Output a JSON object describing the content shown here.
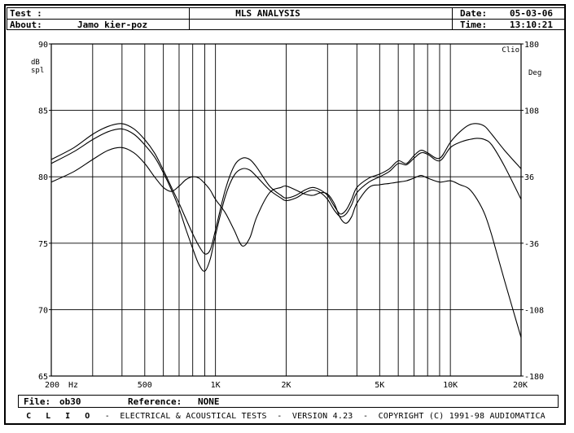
{
  "header": {
    "test_label": "Test :",
    "about_label": "About:",
    "about_value": "Jamo kier-poz",
    "title": "MLS ANALYSIS",
    "date_label": "Date:",
    "date_value": "05-03-06",
    "time_label": "Time:",
    "time_value": "13:10:21"
  },
  "footer": {
    "file_label": "File:",
    "file_value": "ob30",
    "reference_label": "Reference:",
    "reference_value": "NONE"
  },
  "credits": {
    "brand": "C L I O",
    "text": "-  ELECTRICAL & ACOUSTICAL TESTS  -  VERSION 4.23  -  COPYRIGHT (C) 1991-98 AUDIOMATICA"
  },
  "chart_data": {
    "type": "line",
    "corner_label": "Clio",
    "ylabel_left": "dB\nspl",
    "ylabel_right": "Deg",
    "x_unit": "Hz",
    "x_scale": "log",
    "xlim": [
      200,
      20000
    ],
    "ylim": [
      65,
      90
    ],
    "ylim_right": [
      -180,
      180
    ],
    "x_ticks": [
      {
        "value": 200,
        "label": "200"
      },
      {
        "value": 500,
        "label": "500"
      },
      {
        "value": 1000,
        "label": "1K"
      },
      {
        "value": 2000,
        "label": "2K"
      },
      {
        "value": 5000,
        "label": "5K"
      },
      {
        "value": 10000,
        "label": "10K"
      },
      {
        "value": 20000,
        "label": "20K"
      }
    ],
    "y_ticks": [
      65,
      70,
      75,
      80,
      85,
      90
    ],
    "y_ticks_right": [
      -180,
      -108,
      -36,
      36,
      108,
      180
    ],
    "grid": true,
    "series": [
      {
        "x": [
          200,
          250,
          300,
          350,
          400,
          450,
          500,
          550,
          600,
          650,
          700,
          750,
          800,
          850,
          900,
          950,
          1000,
          1100,
          1200,
          1300,
          1400,
          1500,
          1700,
          1900,
          2000,
          2200,
          2400,
          2600,
          2800,
          3000,
          3200,
          3400,
          3600,
          3800,
          4000,
          4500,
          5000,
          5500,
          6000,
          6500,
          7000,
          7500,
          8000,
          9000,
          10000,
          11000,
          12000,
          13000,
          14000,
          15000,
          17000,
          20000
        ],
        "values": [
          81.3,
          82.2,
          83.2,
          83.8,
          84.0,
          83.6,
          82.8,
          81.8,
          80.5,
          79.2,
          78.0,
          76.8,
          75.7,
          74.8,
          74.2,
          74.5,
          76.0,
          79.0,
          80.8,
          81.4,
          81.3,
          80.7,
          79.3,
          78.6,
          78.4,
          78.6,
          79.0,
          79.2,
          79.0,
          78.6,
          77.8,
          77.2,
          77.5,
          78.3,
          79.2,
          79.9,
          80.2,
          80.6,
          81.2,
          81.0,
          81.6,
          82.0,
          81.8,
          81.4,
          82.6,
          83.4,
          83.9,
          84.0,
          83.8,
          83.2,
          82.0,
          80.6
        ]
      },
      {
        "x": [
          200,
          250,
          300,
          350,
          400,
          450,
          500,
          550,
          600,
          650,
          700,
          750,
          800,
          850,
          900,
          950,
          1000,
          1100,
          1200,
          1300,
          1400,
          1500,
          1700,
          1900,
          2000,
          2200,
          2400,
          2600,
          2800,
          3000,
          3200,
          3400,
          3600,
          3800,
          4000,
          4500,
          5000,
          5500,
          6000,
          6500,
          7000,
          7500,
          8000,
          9000,
          10000,
          11000,
          12000,
          13000,
          14000,
          15000,
          17000,
          20000
        ],
        "values": [
          81.0,
          81.9,
          82.8,
          83.4,
          83.6,
          83.2,
          82.4,
          81.5,
          80.3,
          79.0,
          77.6,
          76.0,
          74.6,
          73.4,
          72.9,
          73.8,
          75.6,
          78.5,
          80.1,
          80.6,
          80.5,
          80.0,
          79.0,
          78.4,
          78.2,
          78.4,
          78.8,
          79.0,
          78.8,
          78.3,
          77.5,
          77.0,
          77.2,
          77.9,
          78.8,
          79.6,
          80.0,
          80.4,
          81.0,
          80.9,
          81.4,
          81.8,
          81.7,
          81.2,
          82.2,
          82.6,
          82.8,
          82.9,
          82.8,
          82.4,
          80.8,
          78.3
        ]
      },
      {
        "x": [
          200,
          250,
          300,
          350,
          400,
          450,
          500,
          550,
          600,
          650,
          700,
          750,
          800,
          850,
          900,
          950,
          1000,
          1100,
          1200,
          1300,
          1400,
          1500,
          1700,
          1900,
          2000,
          2200,
          2400,
          2600,
          2800,
          3000,
          3200,
          3400,
          3600,
          3800,
          4000,
          4500,
          5000,
          5500,
          6000,
          6500,
          7000,
          7500,
          8000,
          9000,
          10000,
          11000,
          12000,
          13000,
          14000,
          15000,
          17000,
          20000
        ],
        "values": [
          79.6,
          80.4,
          81.3,
          82.0,
          82.2,
          81.8,
          81.0,
          80.0,
          79.2,
          78.9,
          79.3,
          79.8,
          80.0,
          79.9,
          79.5,
          79.0,
          78.3,
          77.3,
          76.0,
          74.8,
          75.4,
          77.0,
          78.8,
          79.2,
          79.3,
          79.0,
          78.7,
          78.6,
          78.8,
          78.7,
          78.0,
          76.9,
          76.5,
          77.0,
          78.0,
          79.2,
          79.4,
          79.5,
          79.6,
          79.7,
          79.9,
          80.1,
          79.9,
          79.6,
          79.7,
          79.4,
          79.1,
          78.3,
          77.2,
          75.6,
          72.2,
          67.9
        ]
      }
    ]
  }
}
